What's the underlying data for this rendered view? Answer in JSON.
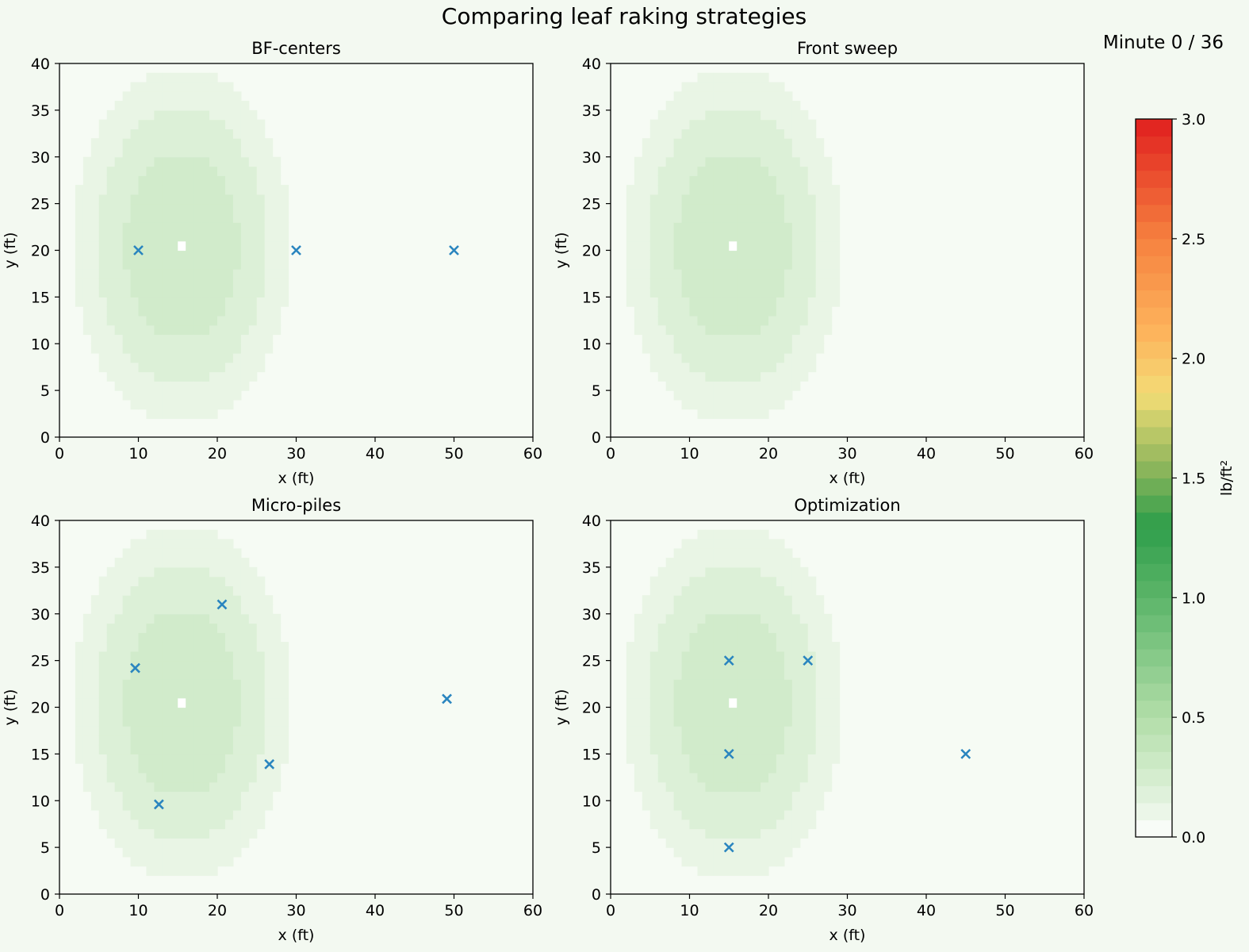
{
  "figure": {
    "title": "Comparing leaf raking strategies",
    "status": "Minute 0 / 36",
    "background": "#f3f9f1"
  },
  "chart_data": [
    {
      "type": "heatmap",
      "title": "BF-centers",
      "xlabel": "x (ft)",
      "ylabel": "y (ft)",
      "xlim": [
        0,
        60
      ],
      "ylim": [
        0,
        40
      ],
      "xticks": [
        0,
        10,
        20,
        30,
        40,
        50,
        60
      ],
      "yticks": [
        0,
        5,
        10,
        15,
        20,
        25,
        30,
        35,
        40
      ],
      "markers": [
        {
          "x": 10,
          "y": 20
        },
        {
          "x": 30,
          "y": 20
        },
        {
          "x": 50,
          "y": 20
        }
      ]
    },
    {
      "type": "heatmap",
      "title": "Front sweep",
      "xlabel": "x (ft)",
      "ylabel": "y (ft)",
      "xlim": [
        0,
        60
      ],
      "ylim": [
        0,
        40
      ],
      "xticks": [
        0,
        10,
        20,
        30,
        40,
        50,
        60
      ],
      "yticks": [
        0,
        5,
        10,
        15,
        20,
        25,
        30,
        35,
        40
      ],
      "markers": []
    },
    {
      "type": "heatmap",
      "title": "Micro-piles",
      "xlabel": "x (ft)",
      "ylabel": "y (ft)",
      "xlim": [
        0,
        60
      ],
      "ylim": [
        0,
        40
      ],
      "xticks": [
        0,
        10,
        20,
        30,
        40,
        50,
        60
      ],
      "yticks": [
        0,
        5,
        10,
        15,
        20,
        25,
        30,
        35,
        40
      ],
      "markers": [
        {
          "x": 9.6,
          "y": 24.2
        },
        {
          "x": 20.6,
          "y": 31
        },
        {
          "x": 12.6,
          "y": 9.6
        },
        {
          "x": 26.6,
          "y": 13.9
        },
        {
          "x": 49.1,
          "y": 20.9
        }
      ]
    },
    {
      "type": "heatmap",
      "title": "Optimization",
      "xlabel": "x (ft)",
      "ylabel": "y (ft)",
      "xlim": [
        0,
        60
      ],
      "ylim": [
        0,
        40
      ],
      "xticks": [
        0,
        10,
        20,
        30,
        40,
        50,
        60
      ],
      "yticks": [
        0,
        5,
        10,
        15,
        20,
        25,
        30,
        35,
        40
      ],
      "markers": [
        {
          "x": 15,
          "y": 25
        },
        {
          "x": 25,
          "y": 25
        },
        {
          "x": 15,
          "y": 15
        },
        {
          "x": 15,
          "y": 5
        },
        {
          "x": 45,
          "y": 15
        }
      ]
    }
  ],
  "heatmap_field": {
    "center": {
      "x": 15,
      "y": 20
    },
    "radius": {
      "x": 14.5,
      "y": 20
    },
    "levels": [
      {
        "threshold": 0.1,
        "value": 0.12
      },
      {
        "threshold": 0.45,
        "value": 0.2
      },
      {
        "threshold": 0.75,
        "value": 0.28
      }
    ],
    "empty_cell": {
      "x": 15,
      "y": 20
    },
    "outside_value": 0.05,
    "cell_size": 1
  },
  "colorbar": {
    "label": "lb/ft²",
    "min": 0,
    "max": 3,
    "ticks": [
      "0.0",
      "0.5",
      "1.0",
      "1.5",
      "2.0",
      "2.5",
      "3.0"
    ],
    "stops": [
      {
        "v": 0.0,
        "color": "#ffffff"
      },
      {
        "v": 0.15,
        "color": "#e3f3df"
      },
      {
        "v": 0.5,
        "color": "#b2dea8"
      },
      {
        "v": 1.0,
        "color": "#5cb569"
      },
      {
        "v": 1.3,
        "color": "#2e9e4b"
      },
      {
        "v": 1.55,
        "color": "#90b65c"
      },
      {
        "v": 1.75,
        "color": "#cfd06d"
      },
      {
        "v": 1.85,
        "color": "#f3dc76"
      },
      {
        "v": 2.1,
        "color": "#fdb55d"
      },
      {
        "v": 2.5,
        "color": "#f6813f"
      },
      {
        "v": 3.0,
        "color": "#e01f1f"
      }
    ],
    "bands": 42
  },
  "colors": {
    "marker": "#2a85bf",
    "axis": "#000000"
  }
}
